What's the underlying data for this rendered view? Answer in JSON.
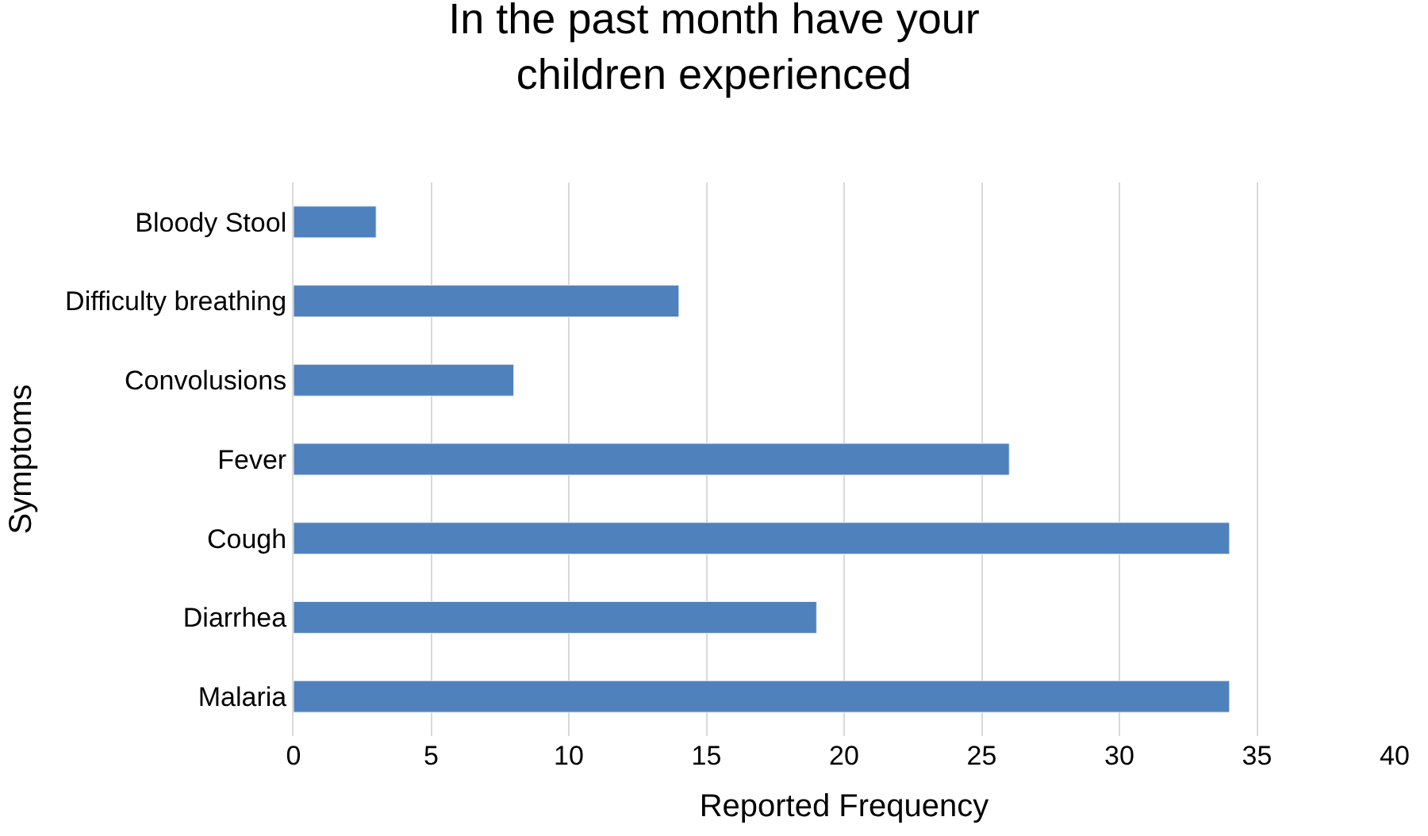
{
  "chart_data": {
    "type": "bar",
    "orientation": "horizontal",
    "title": "In the past month have your children experienced",
    "xlabel": "Reported Frequency",
    "ylabel": "Symptoms",
    "categories": [
      "Bloody Stool",
      "Difficulty breathing",
      "Convolusions",
      "Fever",
      "Cough",
      "Diarrhea",
      "Malaria"
    ],
    "values": [
      3,
      14,
      8,
      26,
      34,
      19,
      34
    ],
    "color": "#4f81bd",
    "xlim": [
      0,
      40
    ],
    "xticks": [
      0,
      5,
      10,
      15,
      20,
      25,
      30,
      35,
      40
    ],
    "grid": "x",
    "legend": false
  }
}
